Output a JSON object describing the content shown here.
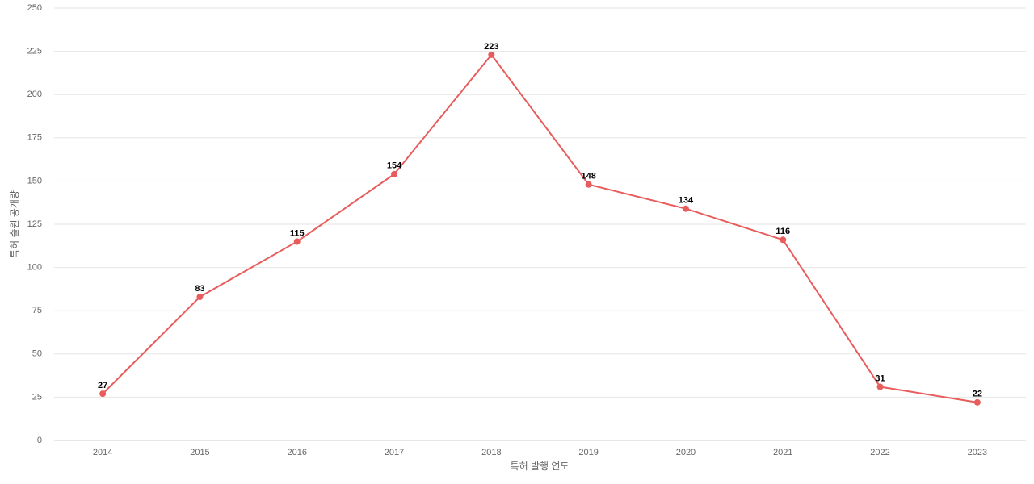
{
  "chart_data": {
    "type": "line",
    "xlabel": "특허 발행 연도",
    "ylabel": "특허 출원 공개량",
    "categories": [
      "2014",
      "2015",
      "2016",
      "2017",
      "2018",
      "2019",
      "2020",
      "2021",
      "2022",
      "2023"
    ],
    "values": [
      27,
      83,
      115,
      154,
      223,
      148,
      134,
      116,
      31,
      22
    ],
    "color": "#e85c5c",
    "ylim": [
      0,
      250
    ],
    "yticks": [
      0,
      25,
      50,
      75,
      100,
      125,
      150,
      175,
      200,
      225,
      250
    ],
    "grid": true
  }
}
